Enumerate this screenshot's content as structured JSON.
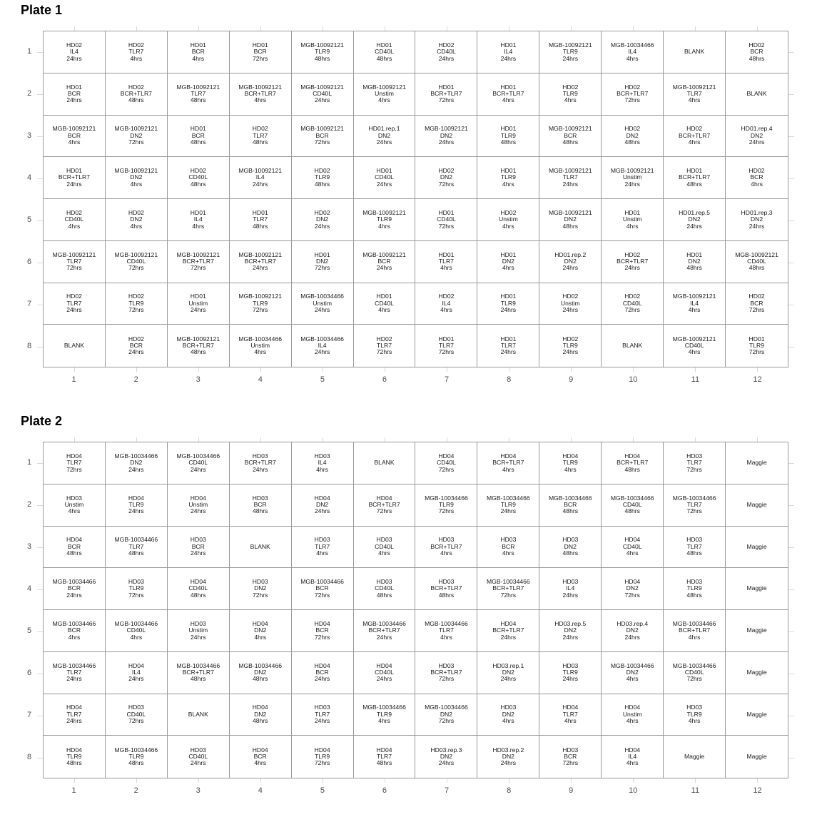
{
  "plates": [
    {
      "title": "Plate 1",
      "rows": [
        [
          [
            "HD02",
            "IL4",
            "24hrs"
          ],
          [
            "HD02",
            "TLR7",
            "4hrs"
          ],
          [
            "HD01",
            "BCR",
            "4hrs"
          ],
          [
            "HD01",
            "BCR",
            "72hrs"
          ],
          [
            "MGB-10092121",
            "TLR9",
            "48hrs"
          ],
          [
            "HD01",
            "CD40L",
            "48hrs"
          ],
          [
            "HD02",
            "CD40L",
            "24hrs"
          ],
          [
            "HD01",
            "IL4",
            "24hrs"
          ],
          [
            "MGB-10092121",
            "TLR9",
            "24hrs"
          ],
          [
            "MGB-10034466",
            "IL4",
            "4hrs"
          ],
          [
            "BLANK"
          ],
          [
            "HD02",
            "BCR",
            "48hrs"
          ]
        ],
        [
          [
            "HD01",
            "BCR",
            "24hrs"
          ],
          [
            "HD02",
            "BCR+TLR7",
            "48hrs"
          ],
          [
            "MGB-10092121",
            "TLR7",
            "48hrs"
          ],
          [
            "MGB-10092121",
            "BCR+TLR7",
            "4hrs"
          ],
          [
            "MGB-10092121",
            "CD40L",
            "24hrs"
          ],
          [
            "MGB-10092121",
            "Unstim",
            "4hrs"
          ],
          [
            "HD01",
            "BCR+TLR7",
            "72hrs"
          ],
          [
            "HD01",
            "BCR+TLR7",
            "4hrs"
          ],
          [
            "HD02",
            "TLR9",
            "4hrs"
          ],
          [
            "HD02",
            "BCR+TLR7",
            "72hrs"
          ],
          [
            "MGB-10092121",
            "TLR7",
            "4hrs"
          ],
          [
            "BLANK"
          ]
        ],
        [
          [
            "MGB-10092121",
            "BCR",
            "4hrs"
          ],
          [
            "MGB-10092121",
            "DN2",
            "72hrs"
          ],
          [
            "HD01",
            "BCR",
            "48hrs"
          ],
          [
            "HD02",
            "TLR7",
            "48hrs"
          ],
          [
            "MGB-10092121",
            "BCR",
            "72hrs"
          ],
          [
            "HD01.rep.1",
            "DN2",
            "24hrs"
          ],
          [
            "MGB-10092121",
            "DN2",
            "24hrs"
          ],
          [
            "HD01",
            "TLR9",
            "48hrs"
          ],
          [
            "MGB-10092121",
            "BCR",
            "48hrs"
          ],
          [
            "HD02",
            "DN2",
            "48hrs"
          ],
          [
            "HD02",
            "BCR+TLR7",
            "4hrs"
          ],
          [
            "HD01.rep.4",
            "DN2",
            "24hrs"
          ]
        ],
        [
          [
            "HD01",
            "BCR+TLR7",
            "24hrs"
          ],
          [
            "MGB-10092121",
            "DN2",
            "4hrs"
          ],
          [
            "HD02",
            "CD40L",
            "48hrs"
          ],
          [
            "MGB-10092121",
            "IL4",
            "24hrs"
          ],
          [
            "HD02",
            "TLR9",
            "48hrs"
          ],
          [
            "HD01",
            "CD40L",
            "24hrs"
          ],
          [
            "HD02",
            "DN2",
            "72hrs"
          ],
          [
            "HD01",
            "TLR9",
            "4hrs"
          ],
          [
            "MGB-10092121",
            "TLR7",
            "24hrs"
          ],
          [
            "MGB-10092121",
            "Unstim",
            "24hrs"
          ],
          [
            "HD01",
            "BCR+TLR7",
            "48hrs"
          ],
          [
            "HD02",
            "BCR",
            "4hrs"
          ]
        ],
        [
          [
            "HD02",
            "CD40L",
            "4hrs"
          ],
          [
            "HD02",
            "DN2",
            "4hrs"
          ],
          [
            "HD01",
            "IL4",
            "4hrs"
          ],
          [
            "HD01",
            "TLR7",
            "48hrs"
          ],
          [
            "HD02",
            "DN2",
            "24hrs"
          ],
          [
            "MGB-10092121",
            "TLR9",
            "4hrs"
          ],
          [
            "HD01",
            "CD40L",
            "72hrs"
          ],
          [
            "HD02",
            "Unstim",
            "4hrs"
          ],
          [
            "MGB-10092121",
            "DN2",
            "48hrs"
          ],
          [
            "HD01",
            "Unstim",
            "4hrs"
          ],
          [
            "HD01.rep.5",
            "DN2",
            "24hrs"
          ],
          [
            "HD01.rep.3",
            "DN2",
            "24hrs"
          ]
        ],
        [
          [
            "MGB-10092121",
            "TLR7",
            "72hrs"
          ],
          [
            "MGB-10092121",
            "CD40L",
            "72hrs"
          ],
          [
            "MGB-10092121",
            "BCR+TLR7",
            "72hrs"
          ],
          [
            "MGB-10092121",
            "BCR+TLR7",
            "24hrs"
          ],
          [
            "HD01",
            "DN2",
            "72hrs"
          ],
          [
            "MGB-10092121",
            "BCR",
            "24hrs"
          ],
          [
            "HD01",
            "TLR7",
            "4hrs"
          ],
          [
            "HD01",
            "DN2",
            "4hrs"
          ],
          [
            "HD01.rep.2",
            "DN2",
            "24hrs"
          ],
          [
            "HD02",
            "BCR+TLR7",
            "24hrs"
          ],
          [
            "HD01",
            "DN2",
            "48hrs"
          ],
          [
            "MGB-10092121",
            "CD40L",
            "48hrs"
          ]
        ],
        [
          [
            "HD02",
            "TLR7",
            "24hrs"
          ],
          [
            "HD02",
            "TLR9",
            "72hrs"
          ],
          [
            "HD01",
            "Unstim",
            "24hrs"
          ],
          [
            "MGB-10092121",
            "TLR9",
            "72hrs"
          ],
          [
            "MGB-10034466",
            "Unstim",
            "24hrs"
          ],
          [
            "HD01",
            "CD40L",
            "4hrs"
          ],
          [
            "HD02",
            "IL4",
            "4hrs"
          ],
          [
            "HD01",
            "TLR9",
            "24hrs"
          ],
          [
            "HD02",
            "Unstim",
            "24hrs"
          ],
          [
            "HD02",
            "CD40L",
            "72hrs"
          ],
          [
            "MGB-10092121",
            "IL4",
            "4hrs"
          ],
          [
            "HD02",
            "BCR",
            "72hrs"
          ]
        ],
        [
          [
            "BLANK"
          ],
          [
            "HD02",
            "BCR",
            "24hrs"
          ],
          [
            "MGB-10092121",
            "BCR+TLR7",
            "48hrs"
          ],
          [
            "MGB-10034466",
            "Unstim",
            "4hrs"
          ],
          [
            "MGB-10034466",
            "IL4",
            "24hrs"
          ],
          [
            "HD02",
            "TLR7",
            "72hrs"
          ],
          [
            "HD01",
            "TLR7",
            "72hrs"
          ],
          [
            "HD01",
            "TLR7",
            "24hrs"
          ],
          [
            "HD02",
            "TLR9",
            "24hrs"
          ],
          [
            "BLANK"
          ],
          [
            "MGB-10092121",
            "CD40L",
            "4hrs"
          ],
          [
            "HD01",
            "TLR9",
            "72hrs"
          ]
        ]
      ]
    },
    {
      "title": "Plate 2",
      "rows": [
        [
          [
            "HD04",
            "TLR7",
            "72hrs"
          ],
          [
            "MGB-10034466",
            "DN2",
            "24hrs"
          ],
          [
            "MGB-10034466",
            "CD40L",
            "24hrs"
          ],
          [
            "HD03",
            "BCR+TLR7",
            "24hrs"
          ],
          [
            "HD03",
            "IL4",
            "4hrs"
          ],
          [
            "BLANK"
          ],
          [
            "HD04",
            "CD40L",
            "72hrs"
          ],
          [
            "HD04",
            "BCR+TLR7",
            "4hrs"
          ],
          [
            "HD04",
            "TLR9",
            "4hrs"
          ],
          [
            "HD04",
            "BCR+TLR7",
            "48hrs"
          ],
          [
            "HD03",
            "TLR7",
            "72hrs"
          ],
          [
            "Maggie"
          ]
        ],
        [
          [
            "HD03",
            "Unstim",
            "4hrs"
          ],
          [
            "HD04",
            "TLR9",
            "24hrs"
          ],
          [
            "HD04",
            "Unstim",
            "24hrs"
          ],
          [
            "HD03",
            "BCR",
            "48hrs"
          ],
          [
            "HD04",
            "DN2",
            "24hrs"
          ],
          [
            "HD04",
            "BCR+TLR7",
            "72hrs"
          ],
          [
            "MGB-10034466",
            "TLR9",
            "72hrs"
          ],
          [
            "MGB-10034466",
            "TLR9",
            "24hrs"
          ],
          [
            "MGB-10034466",
            "BCR",
            "48hrs"
          ],
          [
            "MGB-10034466",
            "CD40L",
            "48hrs"
          ],
          [
            "MGB-10034466",
            "TLR7",
            "72hrs"
          ],
          [
            "Maggie"
          ]
        ],
        [
          [
            "HD04",
            "BCR",
            "48hrs"
          ],
          [
            "MGB-10034466",
            "TLR7",
            "48hrs"
          ],
          [
            "HD03",
            "BCR",
            "24hrs"
          ],
          [
            "BLANK"
          ],
          [
            "HD03",
            "TLR7",
            "4hrs"
          ],
          [
            "HD03",
            "CD40L",
            "4hrs"
          ],
          [
            "HD03",
            "BCR+TLR7",
            "4hrs"
          ],
          [
            "HD03",
            "BCR",
            "4hrs"
          ],
          [
            "HD03",
            "DN2",
            "48hrs"
          ],
          [
            "HD04",
            "CD40L",
            "4hrs"
          ],
          [
            "HD03",
            "TLR7",
            "48hrs"
          ],
          [
            "Maggie"
          ]
        ],
        [
          [
            "MGB-10034466",
            "BCR",
            "24hrs"
          ],
          [
            "HD03",
            "TLR9",
            "72hrs"
          ],
          [
            "HD04",
            "CD40L",
            "48hrs"
          ],
          [
            "HD03",
            "DN2",
            "72hrs"
          ],
          [
            "MGB-10034466",
            "BCR",
            "72hrs"
          ],
          [
            "HD03",
            "CD40L",
            "48hrs"
          ],
          [
            "HD03",
            "BCR+TLR7",
            "48hrs"
          ],
          [
            "MGB-10034466",
            "BCR+TLR7",
            "72hrs"
          ],
          [
            "HD03",
            "IL4",
            "24hrs"
          ],
          [
            "HD04",
            "DN2",
            "72hrs"
          ],
          [
            "HD03",
            "TLR9",
            "48hrs"
          ],
          [
            "Maggie"
          ]
        ],
        [
          [
            "MGB-10034466",
            "BCR",
            "4hrs"
          ],
          [
            "MGB-10034466",
            "CD40L",
            "4hrs"
          ],
          [
            "HD03",
            "Unstim",
            "24hrs"
          ],
          [
            "HD04",
            "DN2",
            "4hrs"
          ],
          [
            "HD04",
            "BCR",
            "72hrs"
          ],
          [
            "MGB-10034466",
            "BCR+TLR7",
            "24hrs"
          ],
          [
            "MGB-10034466",
            "TLR7",
            "4hrs"
          ],
          [
            "HD04",
            "BCR+TLR7",
            "24hrs"
          ],
          [
            "HD03.rep.5",
            "DN2",
            "24hrs"
          ],
          [
            "HD03.rep.4",
            "DN2",
            "24hrs"
          ],
          [
            "MGB-10034466",
            "BCR+TLR7",
            "4hrs"
          ],
          [
            "Maggie"
          ]
        ],
        [
          [
            "MGB-10034466",
            "TLR7",
            "24hrs"
          ],
          [
            "HD04",
            "IL4",
            "24hrs"
          ],
          [
            "MGB-10034466",
            "BCR+TLR7",
            "48hrs"
          ],
          [
            "MGB-10034466",
            "DN2",
            "48hrs"
          ],
          [
            "HD04",
            "BCR",
            "24hrs"
          ],
          [
            "HD04",
            "CD40L",
            "24hrs"
          ],
          [
            "HD03",
            "BCR+TLR7",
            "72hrs"
          ],
          [
            "HD03.rep.1",
            "DN2",
            "24hrs"
          ],
          [
            "HD03",
            "TLR9",
            "24hrs"
          ],
          [
            "MGB-10034466",
            "DN2",
            "4hrs"
          ],
          [
            "MGB-10034466",
            "CD40L",
            "72hrs"
          ],
          [
            "Maggie"
          ]
        ],
        [
          [
            "HD04",
            "TLR7",
            "24hrs"
          ],
          [
            "HD03",
            "CD40L",
            "72hrs"
          ],
          [
            "BLANK"
          ],
          [
            "HD04",
            "DN2",
            "48hrs"
          ],
          [
            "HD03",
            "TLR7",
            "24hrs"
          ],
          [
            "MGB-10034466",
            "TLR9",
            "4hrs"
          ],
          [
            "MGB-10034466",
            "DN2",
            "72hrs"
          ],
          [
            "HD03",
            "DN2",
            "4hrs"
          ],
          [
            "HD04",
            "TLR7",
            "4hrs"
          ],
          [
            "HD04",
            "Unstim",
            "4hrs"
          ],
          [
            "HD03",
            "TLR9",
            "4hrs"
          ],
          [
            "Maggie"
          ]
        ],
        [
          [
            "HD04",
            "TLR9",
            "48hrs"
          ],
          [
            "MGB-10034466",
            "TLR9",
            "48hrs"
          ],
          [
            "HD03",
            "CD40L",
            "24hrs"
          ],
          [
            "HD04",
            "BCR",
            "4hrs"
          ],
          [
            "HD04",
            "TLR9",
            "72hrs"
          ],
          [
            "HD04",
            "TLR7",
            "48hrs"
          ],
          [
            "HD03.rep.3",
            "DN2",
            "24hrs"
          ],
          [
            "HD03.rep.2",
            "DN2",
            "24hrs"
          ],
          [
            "HD03",
            "BCR",
            "72hrs"
          ],
          [
            "HD04",
            "IL4",
            "4hrs"
          ],
          [
            "Maggie"
          ],
          [
            "Maggie"
          ]
        ]
      ]
    }
  ],
  "row_labels": [
    "1",
    "2",
    "3",
    "4",
    "5",
    "6",
    "7",
    "8"
  ],
  "col_labels": [
    "1",
    "2",
    "3",
    "4",
    "5",
    "6",
    "7",
    "8",
    "9",
    "10",
    "11",
    "12"
  ]
}
